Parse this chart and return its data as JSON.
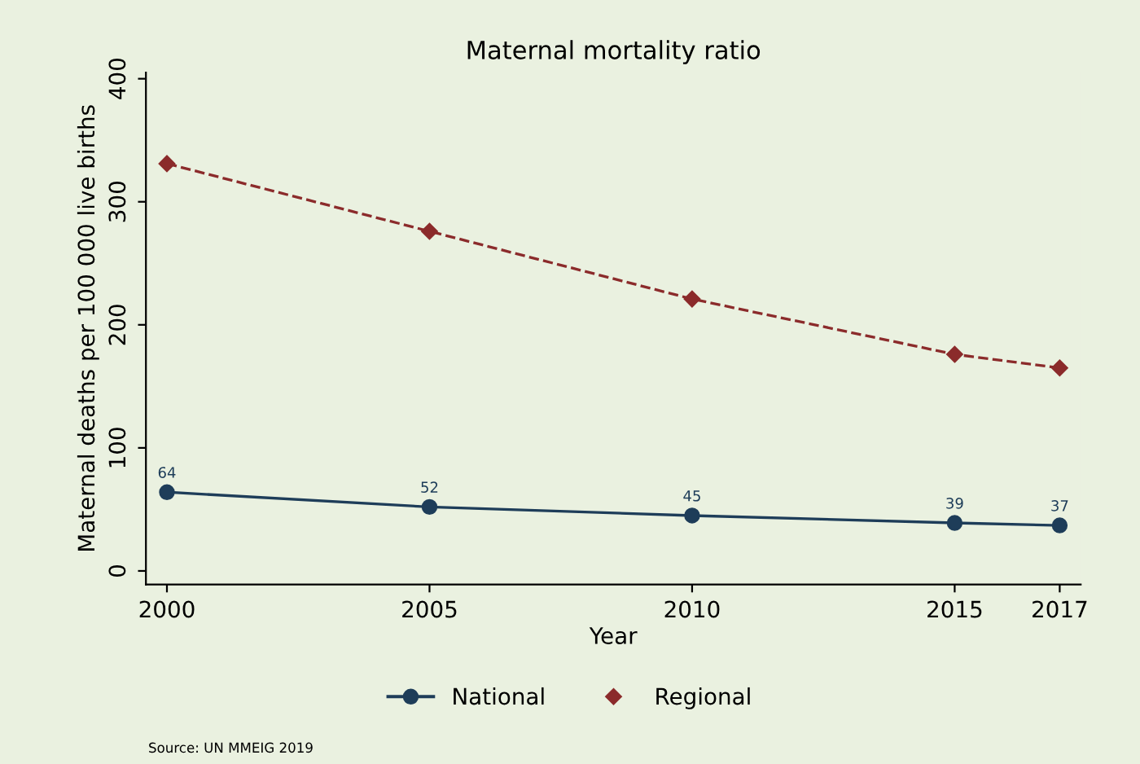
{
  "chart_data": {
    "type": "line",
    "title": "Maternal mortality ratio",
    "xlabel": "Year",
    "ylabel": "Maternal deaths per 100 000 live births",
    "x": [
      2000,
      2005,
      2010,
      2015,
      2017
    ],
    "series": [
      {
        "name": "National",
        "color": "#1e3d59",
        "values": [
          64,
          52,
          45,
          39,
          37
        ],
        "value_labels": [
          "64",
          "52",
          "45",
          "39",
          "37"
        ],
        "marker": "circle",
        "line_style": "solid"
      },
      {
        "name": "Regional",
        "color": "#8b2b2b",
        "values": [
          331,
          276,
          221,
          176,
          165
        ],
        "marker": "diamond",
        "line_style": "dashed"
      }
    ],
    "xlim": [
      1999.6,
      2017.4
    ],
    "ylim": [
      -11,
      405
    ],
    "xticks": [
      2000,
      2005,
      2010,
      2015,
      2017
    ],
    "yticks": [
      0,
      100,
      200,
      300,
      400
    ],
    "grid": false,
    "legend": "bottom",
    "annotations": [
      "Source: UN MMEIG 2019"
    ]
  }
}
